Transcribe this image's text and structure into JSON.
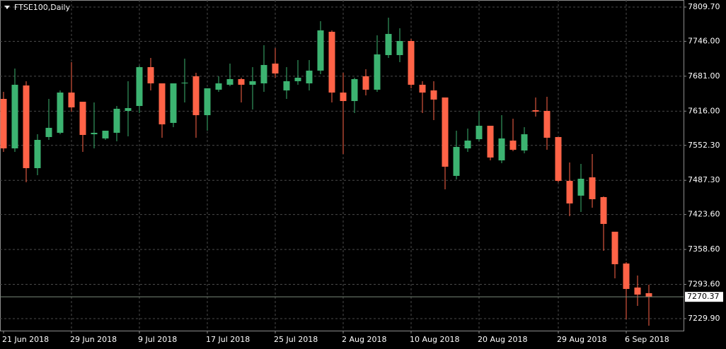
{
  "chart_data": {
    "type": "candlestick",
    "title": "FTSE100,Daily",
    "categories": [
      "21 Jun 2018",
      null,
      null,
      null,
      null,
      null,
      "29 Jun 2018",
      null,
      null,
      null,
      null,
      null,
      "9 Jul 2018",
      null,
      null,
      null,
      null,
      null,
      "17 Jul 2018",
      null,
      null,
      null,
      null,
      null,
      "25 Jul 2018",
      null,
      null,
      null,
      null,
      null,
      "2 Aug 2018",
      null,
      null,
      null,
      null,
      null,
      "10 Aug 2018",
      null,
      null,
      null,
      null,
      null,
      "20 Aug 2018",
      null,
      null,
      null,
      null,
      null,
      null,
      "29 Aug 2018",
      null,
      null,
      null,
      null,
      null,
      "6 Sep 2018",
      null,
      null
    ],
    "open": [
      7638.8,
      7546.7,
      7663.8,
      7509.9,
      7567.8,
      7575.7,
      7650.6,
      7633.5,
      7573.0,
      7565.2,
      7575.7,
      7616.4,
      7625.6,
      7697.9,
      7667.7,
      7594.1,
      7667.7,
      7680.9,
      7608.5,
      7655.9,
      7665.1,
      7675.6,
      7665.1,
      7667.7,
      7704.5,
      7654.6,
      7671.7,
      7667.7,
      7691.4,
      7763.7,
      7650.6,
      7634.8,
      7680.9,
      7655.9,
      7720.3,
      7720.3,
      7746.6,
      7665.1,
      7654.6,
      7641.4,
      7495.5,
      7546.7,
      7563.8,
      7588.8,
      7524.4,
      7561.2,
      7542.8,
      7617.7,
      7616.4,
      7567.8,
      7486.3,
      7458.7,
      7492.8,
      7456.0,
      7391.6,
      7332.4,
      7287.7,
      7277.2
    ],
    "high": [
      7651.9,
      7695.3,
      7671.7,
      7573.0,
      7638.8,
      7654.6,
      7707.2,
      7633.5,
      7632.2,
      7579.6,
      7625.6,
      7671.7,
      7700.6,
      7715.0,
      7667.7,
      7667.7,
      7713.7,
      7687.4,
      7658.5,
      7680.9,
      7704.5,
      7678.2,
      7697.9,
      7738.7,
      7733.4,
      7697.9,
      7711.1,
      7711.1,
      7783.4,
      7766.3,
      7687.4,
      7678.2,
      7694.0,
      7757.1,
      7790.0,
      7770.3,
      7750.5,
      7671.7,
      7671.7,
      7641.4,
      7579.6,
      7583.6,
      7616.4,
      7588.8,
      7608.5,
      7602.0,
      7586.2,
      7641.4,
      7642.7,
      7567.8,
      7520.5,
      7517.8,
      7536.2,
      7457.3,
      7391.6,
      7335.1,
      7310.1,
      7293.0
    ],
    "low": [
      7540.2,
      7540.2,
      7483.6,
      7496.8,
      7562.5,
      7573.0,
      7615.1,
      7540.2,
      7546.7,
      7562.5,
      7559.9,
      7569.1,
      7612.5,
      7654.6,
      7566.5,
      7586.2,
      7632.2,
      7566.5,
      7579.6,
      7651.9,
      7662.4,
      7632.2,
      7619.1,
      7651.9,
      7678.2,
      7638.8,
      7665.1,
      7654.6,
      7684.8,
      7632.2,
      7536.2,
      7612.5,
      7645.4,
      7651.9,
      7715.0,
      7707.2,
      7658.5,
      7612.5,
      7599.3,
      7470.5,
      7488.9,
      7540.2,
      7559.9,
      7524.4,
      7519.1,
      7541.5,
      7537.5,
      7605.9,
      7544.1,
      7483.6,
      7420.5,
      7428.4,
      7436.3,
      7356.1,
      7304.8,
      7228.6,
      7253.5,
      7216.7
    ],
    "close": [
      7546.7,
      7665.1,
      7509.9,
      7562.5,
      7584.9,
      7650.6,
      7623.0,
      7571.7,
      7575.7,
      7579.6,
      7620.4,
      7621.7,
      7697.9,
      7667.7,
      7591.4,
      7667.7,
      7669.0,
      7608.5,
      7658.5,
      7667.7,
      7675.6,
      7665.1,
      7671.7,
      7701.9,
      7686.1,
      7671.7,
      7678.2,
      7691.4,
      7766.3,
      7650.6,
      7634.8,
      7675.6,
      7655.9,
      7721.6,
      7759.7,
      7746.6,
      7665.1,
      7650.6,
      7637.5,
      7512.6,
      7549.4,
      7561.2,
      7588.8,
      7529.7,
      7565.2,
      7544.1,
      7573.0,
      7615.1,
      7566.5,
      7486.3,
      7444.2,
      7490.2,
      7452.1,
      7406.1,
      7331.1,
      7285.1,
      7274.6,
      7270.37
    ],
    "up_color": "#3cb371",
    "down_color": "#ff6347",
    "ylim": [
      7207.5,
      7822.85
    ],
    "yticks": [
      {
        "value": 7809.7,
        "label": "7809.70"
      },
      {
        "value": 7746.0,
        "label": "7746.00"
      },
      {
        "value": 7681.0,
        "label": "7681.00"
      },
      {
        "value": 7616.0,
        "label": "7616.00"
      },
      {
        "value": 7552.3,
        "label": "7552.30"
      },
      {
        "value": 7487.3,
        "label": "7487.30"
      },
      {
        "value": 7423.6,
        "label": "7423.60"
      },
      {
        "value": 7358.6,
        "label": "7358.60"
      },
      {
        "value": 7293.6,
        "label": "7293.60"
      },
      {
        "value": 7229.9,
        "label": "7229.90"
      }
    ],
    "current_price": 7270.37,
    "grid": true
  }
}
